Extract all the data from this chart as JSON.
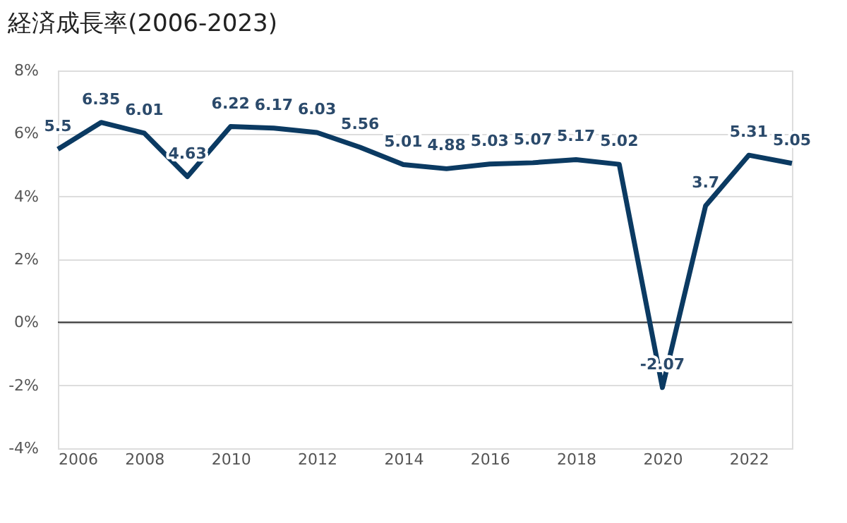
{
  "chart_data": {
    "type": "line",
    "title": "経済成長率(2006-2023)",
    "x": [
      2006,
      2007,
      2008,
      2009,
      2010,
      2011,
      2012,
      2013,
      2014,
      2015,
      2016,
      2017,
      2018,
      2019,
      2020,
      2021,
      2022,
      2023
    ],
    "series": [
      {
        "color": "#0b3a62",
        "values": [
          5.5,
          6.35,
          6.01,
          4.63,
          6.22,
          6.17,
          6.03,
          5.56,
          5.01,
          4.88,
          5.03,
          5.07,
          5.17,
          5.02,
          -2.07,
          3.7,
          5.31,
          5.05
        ]
      }
    ],
    "xlim": [
      2006,
      2023
    ],
    "xticks": [
      2006,
      2008,
      2010,
      2012,
      2014,
      2016,
      2018,
      2020,
      2022
    ],
    "ylim": [
      -4,
      8
    ],
    "yticks": [
      {
        "value": -4,
        "label": "-4%"
      },
      {
        "value": -2,
        "label": "-2%"
      },
      {
        "value": 0,
        "label": "0%"
      },
      {
        "value": 2,
        "label": "2%"
      },
      {
        "value": 4,
        "label": "4%"
      },
      {
        "value": 6,
        "label": "6%"
      },
      {
        "value": 8,
        "label": "8%"
      }
    ],
    "ref_lines": [
      {
        "axis": "y",
        "value": 0,
        "color": "#333333"
      }
    ],
    "grid": "y",
    "data_labels": true,
    "marker": "none",
    "line_style": "solid"
  }
}
